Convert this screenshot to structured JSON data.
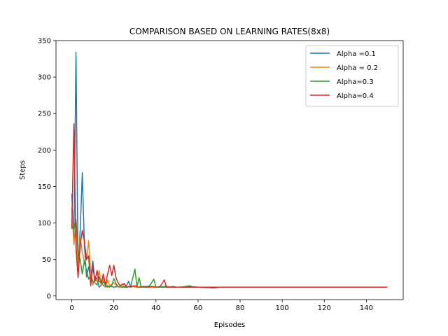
{
  "chart_data": {
    "type": "line",
    "title": "COMPARISON BASED ON LEARNING RATES(8x8)",
    "xlabel": "Episodes",
    "ylabel": "Steps",
    "xlim": [
      -7.5,
      157.5
    ],
    "ylim": [
      -5,
      350
    ],
    "xticks": [
      0,
      20,
      40,
      60,
      80,
      100,
      120,
      140
    ],
    "yticks": [
      0,
      50,
      100,
      150,
      200,
      250,
      300,
      350
    ],
    "legend_position": "top-right",
    "grid": false,
    "series": [
      {
        "name": "Alpha =0.1",
        "color": "#1f77b4",
        "points": [
          [
            0,
            140
          ],
          [
            1,
            72
          ],
          [
            2,
            334
          ],
          [
            3,
            35
          ],
          [
            4,
            90
          ],
          [
            5,
            169
          ],
          [
            6,
            70
          ],
          [
            7,
            26
          ],
          [
            8,
            40
          ],
          [
            9,
            24
          ],
          [
            10,
            48
          ],
          [
            11,
            20
          ],
          [
            12,
            25
          ],
          [
            13,
            12
          ],
          [
            14,
            15
          ],
          [
            15,
            20
          ],
          [
            16,
            14
          ],
          [
            17,
            12
          ],
          [
            18,
            14
          ],
          [
            19,
            13
          ],
          [
            20,
            12
          ],
          [
            22,
            13
          ],
          [
            24,
            12
          ],
          [
            26,
            14
          ],
          [
            27,
            20
          ],
          [
            28,
            12
          ],
          [
            30,
            14
          ],
          [
            32,
            12
          ],
          [
            35,
            13
          ],
          [
            40,
            12
          ],
          [
            45,
            12
          ],
          [
            50,
            12
          ],
          [
            56,
            13
          ],
          [
            60,
            12
          ],
          [
            68,
            11
          ],
          [
            70,
            12
          ],
          [
            80,
            12
          ],
          [
            90,
            12
          ],
          [
            100,
            12
          ],
          [
            110,
            12
          ],
          [
            120,
            12
          ],
          [
            130,
            12
          ],
          [
            140,
            12
          ],
          [
            150,
            12
          ]
        ]
      },
      {
        "name": "Alpha = 0.2",
        "color": "#ff7f0e",
        "points": [
          [
            0,
            120
          ],
          [
            1,
            70
          ],
          [
            2,
            95
          ],
          [
            3,
            30
          ],
          [
            4,
            80
          ],
          [
            5,
            60
          ],
          [
            6,
            45
          ],
          [
            7,
            50
          ],
          [
            8,
            76
          ],
          [
            9,
            30
          ],
          [
            10,
            15
          ],
          [
            11,
            25
          ],
          [
            12,
            20
          ],
          [
            13,
            35
          ],
          [
            14,
            14
          ],
          [
            15,
            25
          ],
          [
            16,
            12
          ],
          [
            17,
            22
          ],
          [
            18,
            14
          ],
          [
            20,
            18
          ],
          [
            22,
            12
          ],
          [
            24,
            13
          ],
          [
            25,
            17
          ],
          [
            26,
            12
          ],
          [
            28,
            14
          ],
          [
            30,
            12
          ],
          [
            35,
            12
          ],
          [
            40,
            12
          ],
          [
            45,
            13
          ],
          [
            50,
            12
          ],
          [
            60,
            12
          ],
          [
            70,
            12
          ],
          [
            80,
            12
          ],
          [
            90,
            12
          ],
          [
            100,
            12
          ],
          [
            110,
            12
          ],
          [
            120,
            12
          ],
          [
            130,
            12
          ],
          [
            140,
            12
          ],
          [
            150,
            12
          ]
        ]
      },
      {
        "name": "Alpha=0.3",
        "color": "#2ca02c",
        "points": [
          [
            0,
            98
          ],
          [
            1,
            90
          ],
          [
            2,
            105
          ],
          [
            3,
            60
          ],
          [
            4,
            50
          ],
          [
            5,
            30
          ],
          [
            6,
            48
          ],
          [
            7,
            35
          ],
          [
            8,
            23
          ],
          [
            9,
            28
          ],
          [
            10,
            20
          ],
          [
            11,
            18
          ],
          [
            12,
            15
          ],
          [
            13,
            26
          ],
          [
            14,
            20
          ],
          [
            15,
            14
          ],
          [
            16,
            13
          ],
          [
            17,
            14
          ],
          [
            18,
            12
          ],
          [
            19,
            14
          ],
          [
            20,
            24
          ],
          [
            21,
            17
          ],
          [
            22,
            13
          ],
          [
            24,
            12
          ],
          [
            26,
            12
          ],
          [
            28,
            13
          ],
          [
            30,
            37
          ],
          [
            31,
            13
          ],
          [
            32,
            25
          ],
          [
            33,
            12
          ],
          [
            35,
            12
          ],
          [
            37,
            14
          ],
          [
            39,
            23
          ],
          [
            40,
            12
          ],
          [
            42,
            12
          ],
          [
            44,
            13
          ],
          [
            46,
            12
          ],
          [
            48,
            13
          ],
          [
            50,
            12
          ],
          [
            52,
            12
          ],
          [
            56,
            14
          ],
          [
            58,
            12
          ],
          [
            60,
            12
          ],
          [
            70,
            12
          ],
          [
            80,
            12
          ],
          [
            90,
            12
          ],
          [
            100,
            12
          ],
          [
            110,
            12
          ],
          [
            120,
            12
          ],
          [
            130,
            12
          ],
          [
            140,
            12
          ],
          [
            150,
            12
          ]
        ]
      },
      {
        "name": "Alpha=0.4",
        "color": "#d62728",
        "points": [
          [
            0,
            92
          ],
          [
            1,
            236
          ],
          [
            2,
            65
          ],
          [
            3,
            25
          ],
          [
            4,
            70
          ],
          [
            5,
            90
          ],
          [
            6,
            75
          ],
          [
            7,
            50
          ],
          [
            8,
            55
          ],
          [
            9,
            14
          ],
          [
            10,
            40
          ],
          [
            11,
            20
          ],
          [
            12,
            35
          ],
          [
            13,
            20
          ],
          [
            14,
            18
          ],
          [
            15,
            30
          ],
          [
            16,
            15
          ],
          [
            17,
            30
          ],
          [
            18,
            42
          ],
          [
            19,
            28
          ],
          [
            20,
            42
          ],
          [
            21,
            25
          ],
          [
            22,
            18
          ],
          [
            23,
            14
          ],
          [
            24,
            16
          ],
          [
            25,
            17
          ],
          [
            26,
            12
          ],
          [
            28,
            13
          ],
          [
            30,
            14
          ],
          [
            32,
            12
          ],
          [
            34,
            13
          ],
          [
            36,
            12
          ],
          [
            38,
            13
          ],
          [
            40,
            12
          ],
          [
            42,
            13
          ],
          [
            44,
            22
          ],
          [
            45,
            12
          ],
          [
            48,
            12
          ],
          [
            50,
            12
          ],
          [
            55,
            12
          ],
          [
            60,
            12
          ],
          [
            70,
            12
          ],
          [
            80,
            12
          ],
          [
            90,
            12
          ],
          [
            100,
            12
          ],
          [
            110,
            12
          ],
          [
            120,
            12
          ],
          [
            130,
            12
          ],
          [
            140,
            12
          ],
          [
            150,
            12
          ]
        ]
      }
    ]
  }
}
